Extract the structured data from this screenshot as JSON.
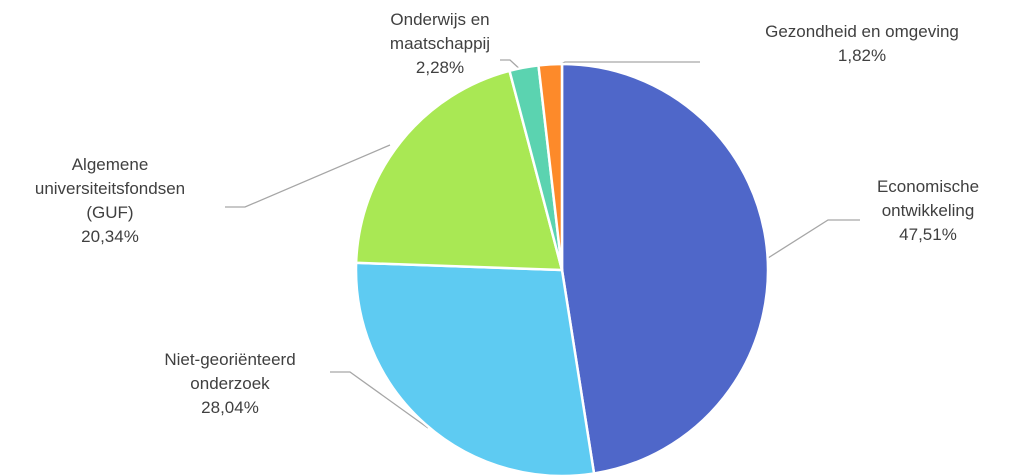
{
  "chart_data": {
    "type": "pie",
    "categories": [
      "Economische ontwikkeling",
      "Niet-georiënteerd onderzoek",
      "Algemene universiteitsfondsen (GUF)",
      "Onderwijs en maatschappij",
      "Gezondheid en omgeving"
    ],
    "values": [
      47.51,
      28.04,
      20.34,
      2.28,
      1.82
    ],
    "value_labels": [
      "47,51%",
      "28,04%",
      "20,34%",
      "2,28%",
      "1,82%"
    ],
    "colors": [
      "#4f67c9",
      "#5ecbf2",
      "#a9e854",
      "#5bd3b0",
      "#fd8a2a"
    ]
  }
}
